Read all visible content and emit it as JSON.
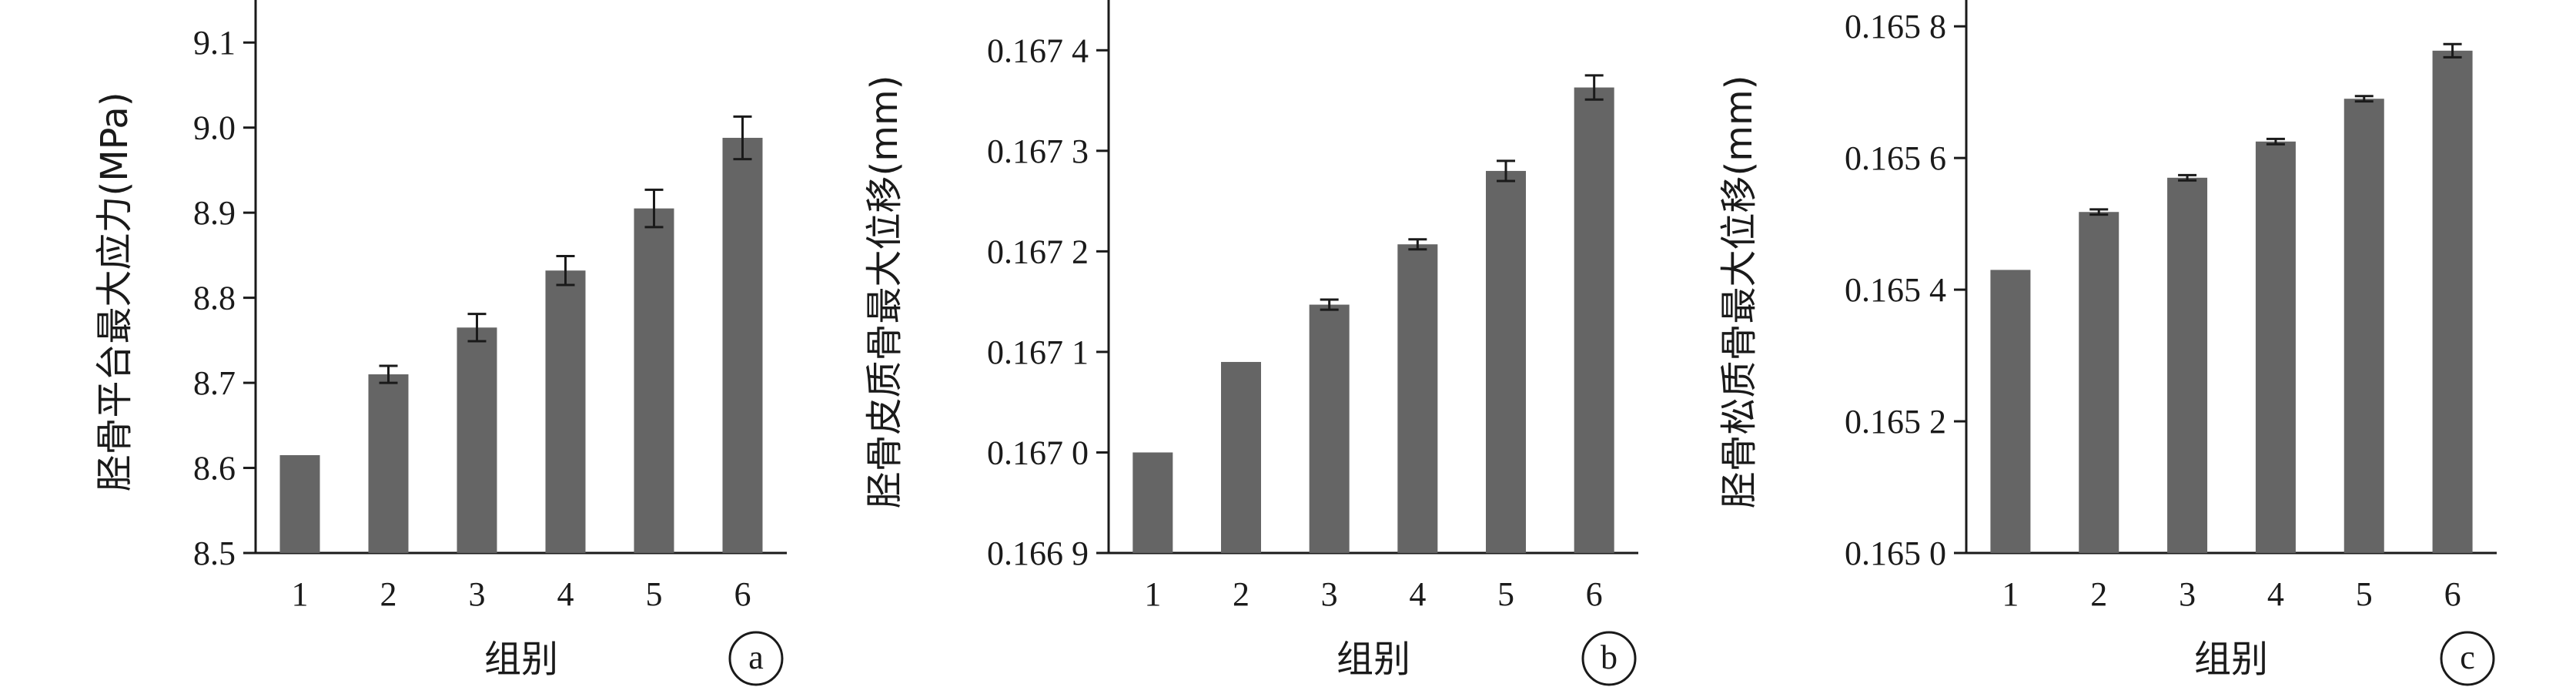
{
  "chart_data": [
    {
      "type": "bar",
      "panel_label": "a",
      "categories": [
        "1",
        "2",
        "3",
        "4",
        "5",
        "6"
      ],
      "values": [
        8.615,
        8.71,
        8.765,
        8.832,
        8.905,
        8.988
      ],
      "errors": [
        0,
        0.01,
        0.016,
        0.017,
        0.022,
        0.025
      ],
      "xlabel": "组别",
      "ylabel": "胫骨平台最大应力(MPa)",
      "ylim": [
        8.5,
        9.15
      ],
      "yticks": [
        "8.5",
        "8.6",
        "8.7",
        "8.8",
        "8.9",
        "9.0",
        "9.1"
      ],
      "ytick_values": [
        8.5,
        8.6,
        8.7,
        8.8,
        8.9,
        9.0,
        9.1
      ],
      "bar_color": "#656565",
      "grid": false
    },
    {
      "type": "bar",
      "panel_label": "b",
      "categories": [
        "1",
        "2",
        "3",
        "4",
        "5",
        "6"
      ],
      "values": [
        0.167,
        0.16709,
        0.167147,
        0.167207,
        0.16728,
        0.167363
      ],
      "errors": [
        0,
        0,
        5e-06,
        5e-06,
        1e-05,
        1.2e-05
      ],
      "xlabel": "组别",
      "ylabel": "胫骨皮质骨最大位移(mm)",
      "ylim": [
        0.1669,
        0.16745
      ],
      "yticks": [
        "0.166 9",
        "0.167 0",
        "0.167 1",
        "0.167 2",
        "0.167 3",
        "0.167 4"
      ],
      "ytick_values": [
        0.1669,
        0.167,
        0.1671,
        0.1672,
        0.1673,
        0.1674
      ],
      "bar_color": "#656565",
      "grid": false
    },
    {
      "type": "bar",
      "panel_label": "c",
      "categories": [
        "1",
        "2",
        "3",
        "4",
        "5",
        "6"
      ],
      "values": [
        0.16543,
        0.165518,
        0.16557,
        0.165625,
        0.16569,
        0.165763
      ],
      "errors": [
        0,
        4e-06,
        4e-06,
        4e-06,
        4e-06,
        1e-05
      ],
      "xlabel": "组别",
      "ylabel": "胫骨松质骨最大位移(mm)",
      "ylim": [
        0.165,
        0.16584
      ],
      "yticks": [
        "0.165 0",
        "0.165 2",
        "0.165 4",
        "0.165 6",
        "0.165 8"
      ],
      "ytick_values": [
        0.165,
        0.1652,
        0.1654,
        0.1656,
        0.1658
      ],
      "bar_color": "#656565",
      "grid": false
    }
  ]
}
